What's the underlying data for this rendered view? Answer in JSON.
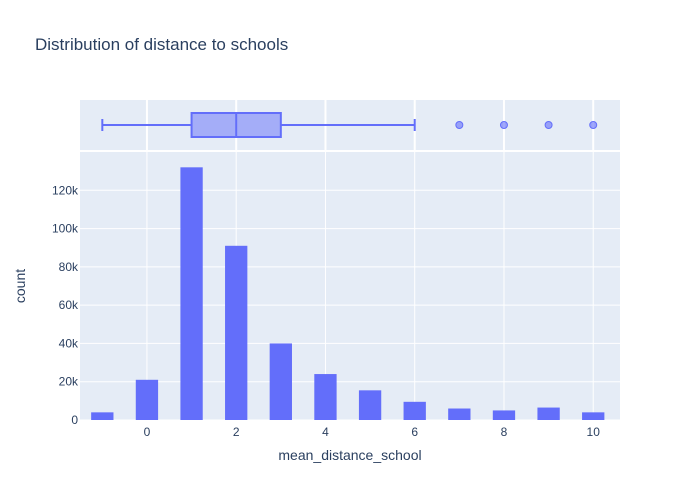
{
  "chart_data": {
    "type": "bar",
    "title": "Distribution of distance to schools",
    "xlabel": "mean_distance_school",
    "ylabel": "count",
    "xlim": [
      -1.5,
      10.6
    ],
    "ylim": [
      0,
      140000
    ],
    "x_ticks": [
      0,
      2,
      4,
      6,
      8,
      10
    ],
    "y_ticks": [
      0,
      20000,
      40000,
      60000,
      80000,
      100000,
      120000
    ],
    "y_tick_labels": [
      "0",
      "20k",
      "40k",
      "60k",
      "80k",
      "100k",
      "120k"
    ],
    "bar_width": 0.5,
    "x": [
      -1,
      0,
      1,
      2,
      3,
      4,
      5,
      6,
      7,
      8,
      9,
      10
    ],
    "values": [
      4000,
      21000,
      132000,
      91000,
      40000,
      24000,
      15500,
      9500,
      6000,
      5000,
      6500,
      4000
    ],
    "grid": true,
    "colors": {
      "bar": "#636efa",
      "plot_bg": "#e5ecf6",
      "grid": "#ffffff",
      "text": "#2a3f5f"
    },
    "boxplot": {
      "min": -1,
      "q1": 1,
      "median": 2,
      "q3": 3,
      "upper_fence": 6,
      "outliers": [
        7,
        8,
        9,
        10
      ]
    }
  }
}
